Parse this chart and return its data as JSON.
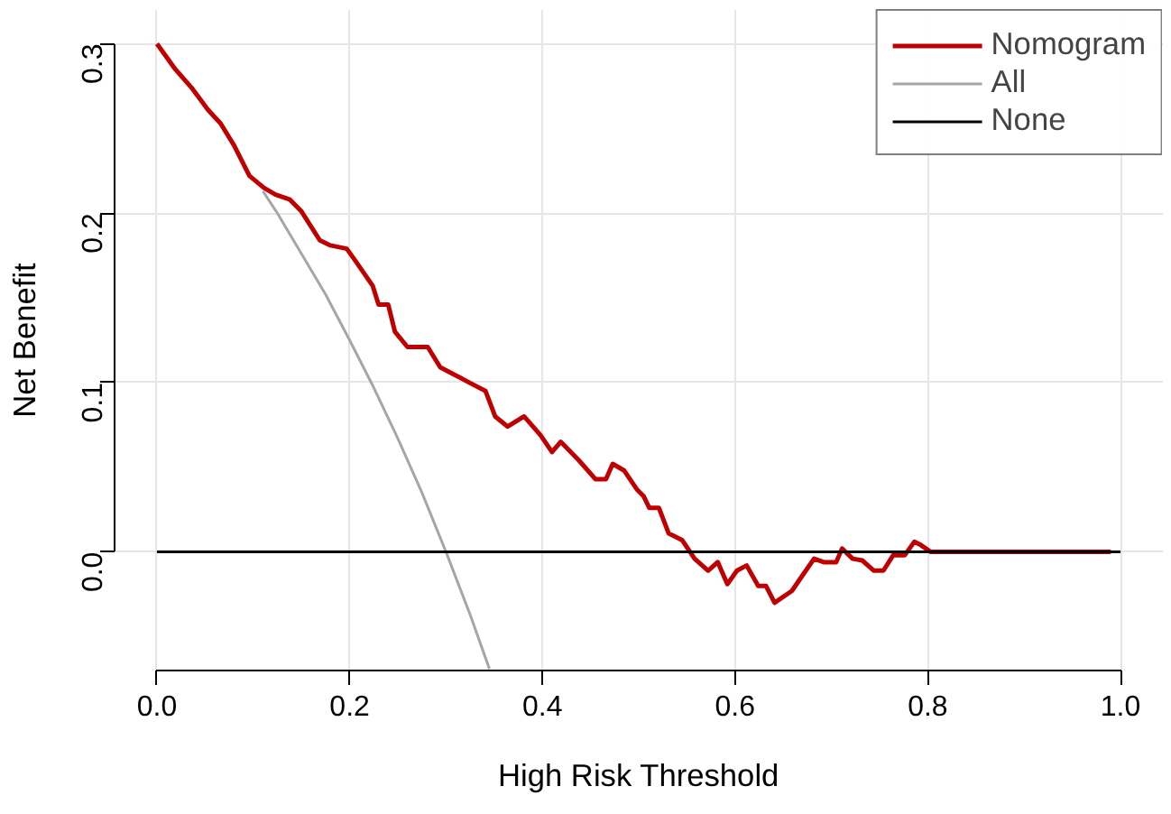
{
  "chart_data": {
    "type": "line",
    "xlabel": "High Risk Threshold",
    "ylabel": "Net Benefit",
    "xlim": [
      -0.044,
      1.044
    ],
    "ylim": [
      -0.07,
      0.32
    ],
    "xticks": [
      {
        "value": 0,
        "label": "0.0"
      },
      {
        "value": 0.2,
        "label": "0.2"
      },
      {
        "value": 0.4,
        "label": "0.4"
      },
      {
        "value": 0.6,
        "label": "0.6"
      },
      {
        "value": 0.8,
        "label": "0.8"
      },
      {
        "value": 1,
        "label": "1.0"
      }
    ],
    "yticks": [
      {
        "value": 0,
        "label": "0.0"
      },
      {
        "value": 0.1,
        "label": "0.1"
      },
      {
        "value": 0.2,
        "label": "0.2"
      },
      {
        "value": 0.3,
        "label": "0.3"
      }
    ],
    "grid": true,
    "legend": "top right",
    "line_style": "solid",
    "marker": "none",
    "series": [
      {
        "name": "Nomogram",
        "color": "#c00000",
        "x": [
          0,
          0.019,
          0.036,
          0.053,
          0.066,
          0.08,
          0.096,
          0.111,
          0.123,
          0.138,
          0.15,
          0.169,
          0.18,
          0.197,
          0.207,
          0.224,
          0.23,
          0.24,
          0.247,
          0.26,
          0.281,
          0.294,
          0.311,
          0.324,
          0.341,
          0.351,
          0.364,
          0.381,
          0.398,
          0.41,
          0.419,
          0.438,
          0.455,
          0.466,
          0.473,
          0.485,
          0.498,
          0.505,
          0.511,
          0.521,
          0.531,
          0.545,
          0.558,
          0.572,
          0.582,
          0.592,
          0.602,
          0.612,
          0.624,
          0.632,
          0.641,
          0.659,
          0.671,
          0.682,
          0.692,
          0.705,
          0.711,
          0.722,
          0.732,
          0.744,
          0.754,
          0.764,
          0.776,
          0.786,
          0.793,
          0.803,
          0.99
        ],
        "values": [
          0.3,
          0.285,
          0.274,
          0.261,
          0.253,
          0.24,
          0.222,
          0.215,
          0.211,
          0.208,
          0.201,
          0.184,
          0.181,
          0.179,
          0.171,
          0.157,
          0.146,
          0.146,
          0.13,
          0.121,
          0.121,
          0.109,
          0.104,
          0.1,
          0.095,
          0.08,
          0.074,
          0.08,
          0.069,
          0.059,
          0.065,
          0.054,
          0.043,
          0.043,
          0.052,
          0.048,
          0.037,
          0.033,
          0.026,
          0.026,
          0.011,
          0.007,
          -0.004,
          -0.011,
          -0.006,
          -0.019,
          -0.011,
          -0.008,
          -0.02,
          -0.02,
          -0.03,
          -0.023,
          -0.013,
          -0.004,
          -0.006,
          -0.006,
          0.002,
          -0.004,
          -0.005,
          -0.011,
          -0.011,
          -0.002,
          -0.002,
          0.006,
          0.004,
          0.0,
          0.0
        ]
      },
      {
        "name": "All",
        "color": "#a6a6a6",
        "x": [
          0.11,
          0.125,
          0.15,
          0.175,
          0.2,
          0.225,
          0.25,
          0.275,
          0.3,
          0.325,
          0.345
        ],
        "values": [
          0.213,
          0.2,
          0.176,
          0.152,
          0.125,
          0.097,
          0.067,
          0.035,
          0.0,
          -0.037,
          -0.069
        ]
      },
      {
        "name": "None",
        "color": "#000000",
        "x": [
          0,
          1
        ],
        "values": [
          0,
          0
        ]
      }
    ]
  }
}
